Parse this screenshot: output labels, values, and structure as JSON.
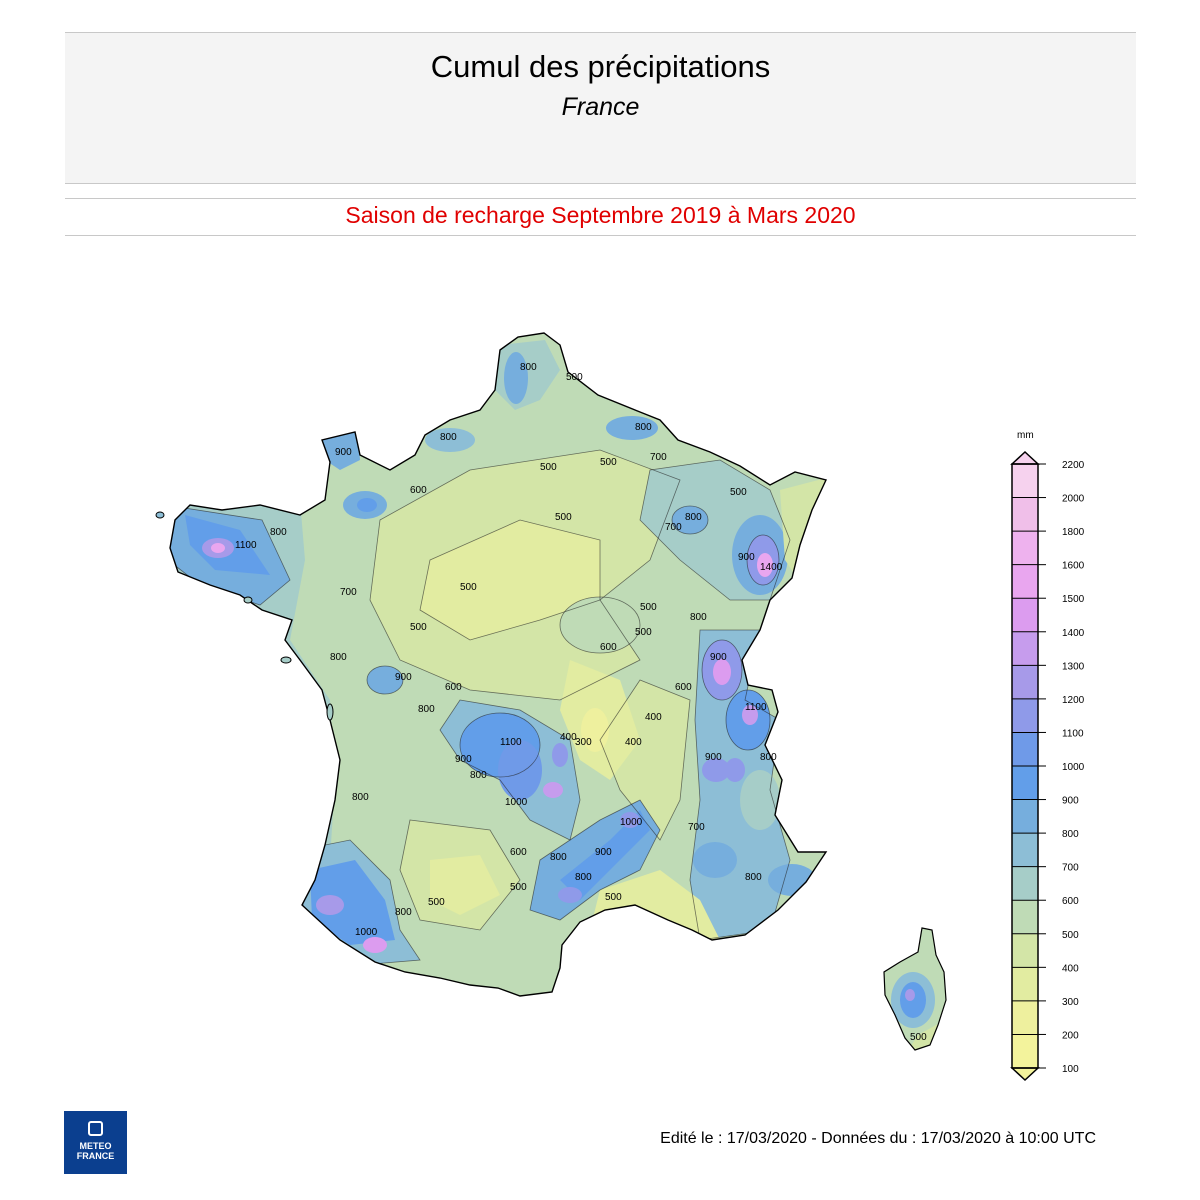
{
  "header": {
    "title": "Cumul des précipitations",
    "subtitle": "France"
  },
  "period": {
    "label": "Saison de recharge  Septembre 2019 à Mars 2020",
    "color": "#e00000"
  },
  "legend": {
    "unit": "mm",
    "ticks": [
      "2200",
      "2000",
      "1800",
      "1600",
      "1500",
      "1400",
      "1300",
      "1200",
      "1100",
      "1000",
      "900",
      "800",
      "700",
      "600",
      "500",
      "400",
      "300",
      "200",
      "100"
    ],
    "colors": [
      "#f6d2ee",
      "#f0bfe9",
      "#eeb2ee",
      "#e9a6ef",
      "#dc9cef",
      "#c69ced",
      "#a79ae9",
      "#8f9ae9",
      "#6f9ae8",
      "#629ee9",
      "#76aedd",
      "#8dbed6",
      "#a6cdc8",
      "#bfdbb6",
      "#d3e5a7",
      "#e2eca1",
      "#eef09e",
      "#f3f39c"
    ]
  },
  "map": {
    "contour_labels": [
      "500",
      "700",
      "800",
      "900",
      "1000",
      "1100",
      "1200",
      "600",
      "400",
      "300",
      "1400"
    ]
  },
  "footer": {
    "edit_info": "Edité le : 17/03/2020 - Données du : 17/03/2020 à 10:00 UTC",
    "logo_text": "METEO\nFRANCE"
  }
}
